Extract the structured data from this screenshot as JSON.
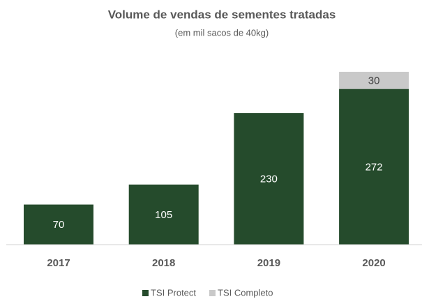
{
  "chart_data": {
    "type": "stacked-bar",
    "title": "Volume de vendas de sementes tratadas",
    "subtitle": "(em mil sacos de 40kg)",
    "categories": [
      "2017",
      "2018",
      "2019",
      "2020"
    ],
    "series": [
      {
        "name": "TSI Protect",
        "color": "#254b2c",
        "values": [
          70,
          105,
          230,
          272
        ]
      },
      {
        "name": "TSI Completo",
        "color": "#c9c9c9",
        "values": [
          null,
          null,
          null,
          30
        ]
      }
    ],
    "legend": "bottom"
  }
}
